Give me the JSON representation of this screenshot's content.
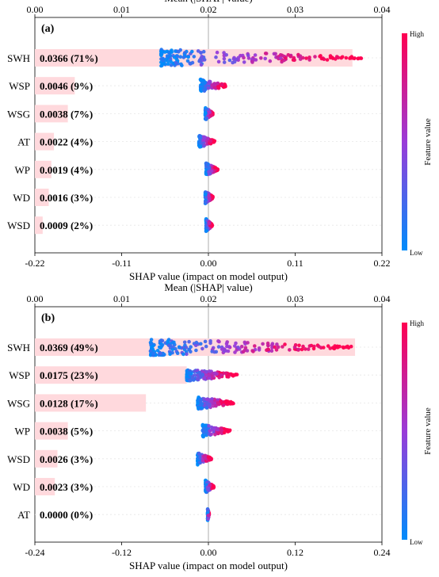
{
  "colors": {
    "high": "#ff0051",
    "low": "#008bfb",
    "bar": "#ffd9dd",
    "zero_line": "#999999"
  },
  "chart_data": [
    {
      "type": "bar+beeswarm",
      "panel_label": "(a)",
      "top_axis": {
        "label": "Mean (|SHAP| value)",
        "ticks": [
          "0.00",
          "0.01",
          "0.02",
          "0.03",
          "0.04"
        ],
        "range": [
          0,
          0.04
        ]
      },
      "bottom_axis": {
        "label": "SHAP value (impact on model output)",
        "ticks": [
          "-0.22",
          "-0.11",
          "0.00",
          "0.11",
          "0.22"
        ],
        "range": [
          -0.22,
          0.22
        ]
      },
      "features": [
        {
          "name": "SWH",
          "mean_abs_shap": 0.0366,
          "bar_label": "0.0366 (71%)",
          "shap_min": -0.06,
          "shap_max": 0.195,
          "density": 3
        },
        {
          "name": "WSP",
          "mean_abs_shap": 0.0046,
          "bar_label": "0.0046 (9%)",
          "shap_min": -0.01,
          "shap_max": 0.025,
          "density": 1
        },
        {
          "name": "WSG",
          "mean_abs_shap": 0.0038,
          "bar_label": "0.0038 (7%)",
          "shap_min": -0.004,
          "shap_max": 0.006,
          "density": 1
        },
        {
          "name": "AT",
          "mean_abs_shap": 0.0022,
          "bar_label": "0.0022 (4%)",
          "shap_min": -0.012,
          "shap_max": 0.008,
          "density": 1
        },
        {
          "name": "WP",
          "mean_abs_shap": 0.0019,
          "bar_label": "0.0019 (4%)",
          "shap_min": -0.003,
          "shap_max": 0.012,
          "density": 1
        },
        {
          "name": "WD",
          "mean_abs_shap": 0.0016,
          "bar_label": "0.0016 (3%)",
          "shap_min": -0.004,
          "shap_max": 0.006,
          "density": 1
        },
        {
          "name": "WSD",
          "mean_abs_shap": 0.0009,
          "bar_label": "0.0009 (2%)",
          "shap_min": -0.003,
          "shap_max": 0.005,
          "density": 1
        }
      ],
      "colorbar": {
        "title": "Feature value",
        "high_label": "High",
        "low_label": "Low"
      }
    },
    {
      "type": "bar+beeswarm",
      "panel_label": "(b)",
      "top_axis": {
        "label": "Mean (|SHAP| value)",
        "ticks": [
          "0.00",
          "0.01",
          "0.02",
          "0.03",
          "0.04"
        ],
        "range": [
          0,
          0.04
        ]
      },
      "bottom_axis": {
        "label": "SHAP value (impact on model output)",
        "ticks": [
          "-0.24",
          "-0.12",
          "0.00",
          "0.12",
          "0.24"
        ],
        "range": [
          -0.24,
          0.24
        ]
      },
      "features": [
        {
          "name": "SWH",
          "mean_abs_shap": 0.0369,
          "bar_label": "0.0369 (49%)",
          "shap_min": -0.08,
          "shap_max": 0.2,
          "density": 3
        },
        {
          "name": "WSP",
          "mean_abs_shap": 0.0175,
          "bar_label": "0.0175 (23%)",
          "shap_min": -0.03,
          "shap_max": 0.04,
          "density": 2
        },
        {
          "name": "WSG",
          "mean_abs_shap": 0.0128,
          "bar_label": "0.0128 (17%)",
          "shap_min": -0.015,
          "shap_max": 0.035,
          "density": 2
        },
        {
          "name": "WP",
          "mean_abs_shap": 0.0038,
          "bar_label": "0.0038 (5%)",
          "shap_min": -0.008,
          "shap_max": 0.03,
          "density": 1
        },
        {
          "name": "WSD",
          "mean_abs_shap": 0.0026,
          "bar_label": "0.0026 (3%)",
          "shap_min": -0.015,
          "shap_max": 0.004,
          "density": 1
        },
        {
          "name": "WD",
          "mean_abs_shap": 0.0023,
          "bar_label": "0.0023 (3%)",
          "shap_min": -0.004,
          "shap_max": 0.008,
          "density": 1
        },
        {
          "name": "AT",
          "mean_abs_shap": 0.0,
          "bar_label": "0.0000 (0%)",
          "shap_min": -0.001,
          "shap_max": 0.001,
          "density": 1
        }
      ],
      "colorbar": {
        "title": "Feature value",
        "high_label": "High",
        "low_label": "Low"
      }
    }
  ]
}
